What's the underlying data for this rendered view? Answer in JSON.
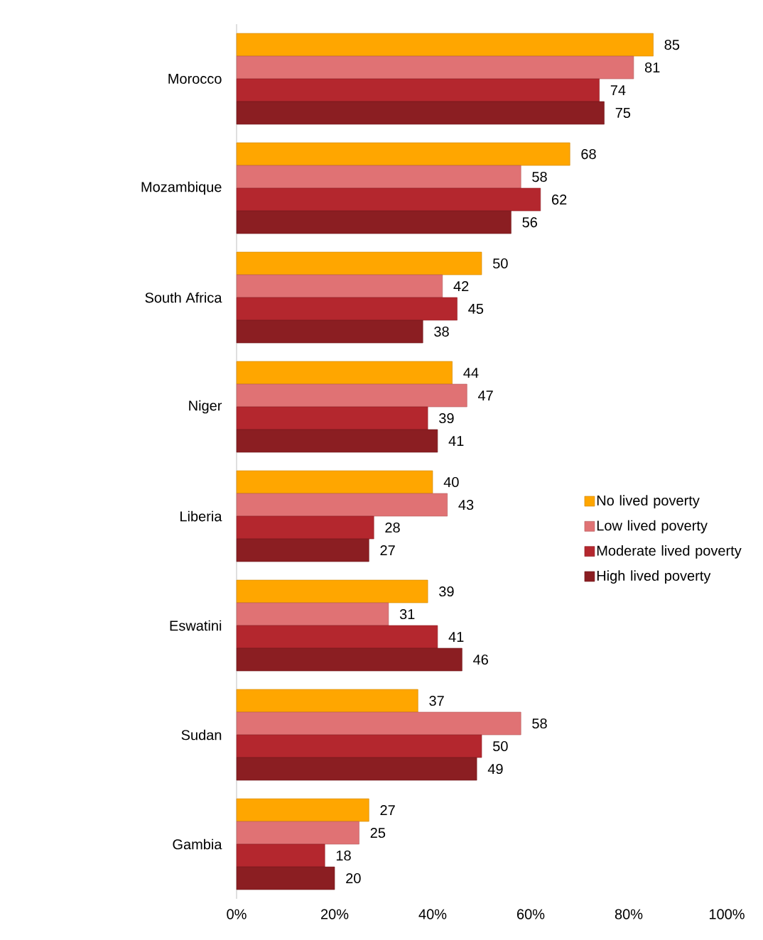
{
  "chart_data": {
    "type": "bar",
    "orientation": "horizontal",
    "categories": [
      "Morocco",
      "Mozambique",
      "South Africa",
      "Niger",
      "Liberia",
      "Eswatini",
      "Sudan",
      "Gambia"
    ],
    "series": [
      {
        "name": "No lived poverty",
        "color": "#ffa600",
        "values": [
          85,
          68,
          50,
          44,
          40,
          39,
          37,
          27
        ]
      },
      {
        "name": "Low lived poverty",
        "color": "#e07274",
        "values": [
          81,
          58,
          42,
          47,
          43,
          31,
          58,
          25
        ]
      },
      {
        "name": "Moderate lived poverty",
        "color": "#b4272e",
        "values": [
          74,
          62,
          45,
          39,
          28,
          41,
          50,
          18
        ]
      },
      {
        "name": "High lived poverty",
        "color": "#8b1e22",
        "values": [
          75,
          56,
          38,
          41,
          27,
          46,
          49,
          20
        ]
      }
    ],
    "xlim": [
      0,
      100
    ],
    "xticks": [
      {
        "value": 0,
        "label": "0%"
      },
      {
        "value": 20,
        "label": "20%"
      },
      {
        "value": 40,
        "label": "40%"
      },
      {
        "value": 60,
        "label": "60%"
      },
      {
        "value": 80,
        "label": "80%"
      },
      {
        "value": 100,
        "label": "100%"
      }
    ],
    "data_labels": true,
    "legend": "right"
  }
}
